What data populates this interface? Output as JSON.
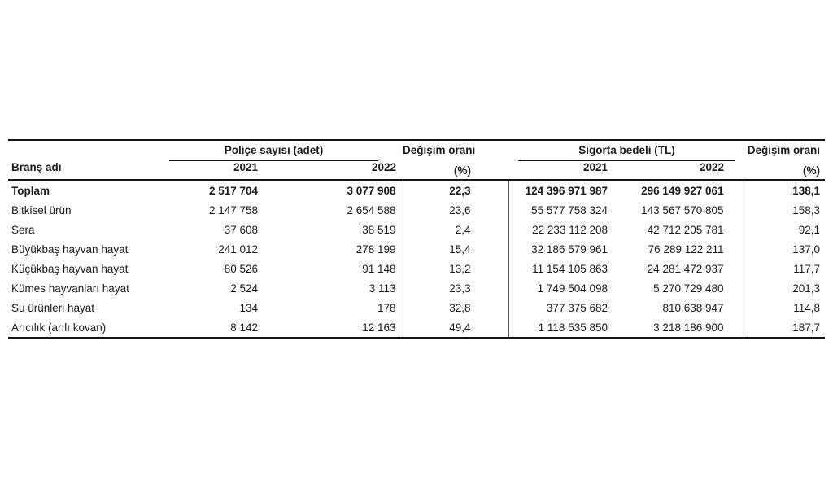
{
  "page": {
    "background_color": "#ffffff",
    "text_color": "#1a1a1a",
    "rule_color": "#161616"
  },
  "table": {
    "col1_header": "Branş adı",
    "group1": "Poliçe sayısı (adet)",
    "group2": "Sigorta bedeli (TL)",
    "change_header_line1": "Değişim oranı",
    "change_header_line2": "(%)",
    "year1": "2021",
    "year2": "2022",
    "rows": [
      {
        "label": "Toplam",
        "bold": true,
        "policy_2021": "2 517 704",
        "policy_2022": "3 077 908",
        "policy_change": "22,3",
        "sum_2021": "124 396 971 987",
        "sum_2022": "296 149 927 061",
        "sum_change": "138,1"
      },
      {
        "label": "Bitkisel ürün",
        "bold": false,
        "policy_2021": "2 147 758",
        "policy_2022": "2 654 588",
        "policy_change": "23,6",
        "sum_2021": "55 577 758 324",
        "sum_2022": "143 567 570 805",
        "sum_change": "158,3"
      },
      {
        "label": "Sera",
        "bold": false,
        "policy_2021": "37 608",
        "policy_2022": "38 519",
        "policy_change": "2,4",
        "sum_2021": "22 233 112 208",
        "sum_2022": "42 712 205 781",
        "sum_change": "92,1"
      },
      {
        "label": "Büyükbaş hayvan hayat",
        "bold": false,
        "policy_2021": "241 012",
        "policy_2022": "278 199",
        "policy_change": "15,4",
        "sum_2021": "32 186 579 961",
        "sum_2022": "76 289 122 211",
        "sum_change": "137,0"
      },
      {
        "label": "Küçükbaş hayvan hayat",
        "bold": false,
        "policy_2021": "80 526",
        "policy_2022": "91 148",
        "policy_change": "13,2",
        "sum_2021": "11 154 105 863",
        "sum_2022": "24 281 472 937",
        "sum_change": "117,7"
      },
      {
        "label": "Kümes hayvanları hayat",
        "bold": false,
        "policy_2021": "2 524",
        "policy_2022": "3 113",
        "policy_change": "23,3",
        "sum_2021": "1 749 504 098",
        "sum_2022": "5 270 729 480",
        "sum_change": "201,3"
      },
      {
        "label": "Su ürünleri hayat",
        "bold": false,
        "policy_2021": "134",
        "policy_2022": "178",
        "policy_change": "32,8",
        "sum_2021": "377 375 682",
        "sum_2022": "810 638 947",
        "sum_change": "114,8"
      },
      {
        "label": "Arıcılık (arılı kovan)",
        "bold": false,
        "policy_2021": "8 142",
        "policy_2022": "12 163",
        "policy_change": "49,4",
        "sum_2021": "1 118 535 850",
        "sum_2022": "3 218 186 900",
        "sum_change": "187,7"
      }
    ]
  },
  "chart_data": {
    "type": "table",
    "columns": [
      "Branş adı",
      "Poliçe sayısı (adet) 2021",
      "Poliçe sayısı (adet) 2022",
      "Değişim oranı (%)",
      "Sigorta bedeli (TL) 2021",
      "Sigorta bedeli (TL) 2022",
      "Değişim oranı (%)"
    ],
    "rows": [
      [
        "Toplam",
        2517704,
        3077908,
        22.3,
        124396971987,
        296149927061,
        138.1
      ],
      [
        "Bitkisel ürün",
        2147758,
        2654588,
        23.6,
        55577758324,
        143567570805,
        158.3
      ],
      [
        "Sera",
        37608,
        38519,
        2.4,
        22233112208,
        42712205781,
        92.1
      ],
      [
        "Büyükbaş hayvan hayat",
        241012,
        278199,
        15.4,
        32186579961,
        76289122211,
        137.0
      ],
      [
        "Küçükbaş hayvan hayat",
        80526,
        91148,
        13.2,
        11154105863,
        24281472937,
        117.7
      ],
      [
        "Kümes hayvanları hayat",
        2524,
        3113,
        23.3,
        1749504098,
        5270729480,
        201.3
      ],
      [
        "Su ürünleri hayat",
        134,
        178,
        32.8,
        377375682,
        810638947,
        114.8
      ],
      [
        "Arıcılık (arılı kovan)",
        8142,
        12163,
        49.4,
        1118535850,
        3218186900,
        187.7
      ]
    ],
    "layout": {
      "grid": "partial-rules",
      "header_rows": 2,
      "bold_rows": [
        "Toplam"
      ]
    }
  }
}
